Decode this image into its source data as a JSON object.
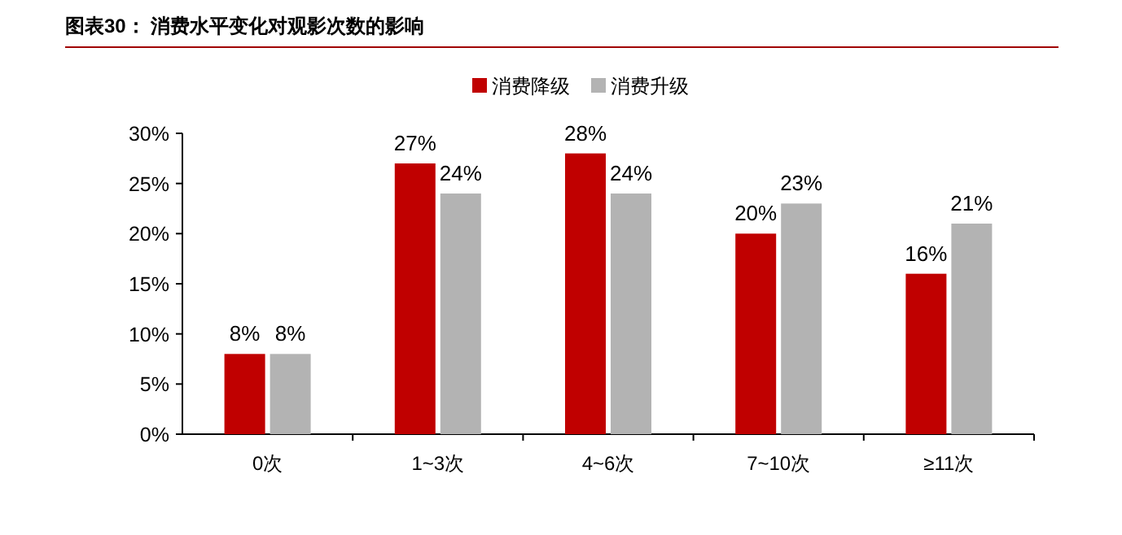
{
  "chart_data": {
    "type": "bar",
    "title": "图表30：  消费水平变化对观影次数的影响",
    "categories": [
      "0次",
      "1~3次",
      "4~6次",
      "7~10次",
      "≥11次"
    ],
    "series": [
      {
        "name": "消费降级",
        "color": "#c00000",
        "values": [
          8,
          27,
          28,
          20,
          16
        ],
        "value_labels": [
          "8%",
          "27%",
          "28%",
          "20%",
          "16%"
        ]
      },
      {
        "name": "消费升级",
        "color": "#b3b3b3",
        "values": [
          8,
          24,
          24,
          23,
          21
        ],
        "value_labels": [
          "8%",
          "24%",
          "24%",
          "23%",
          "21%"
        ]
      }
    ],
    "ylim": [
      0,
      30
    ],
    "yticks": [
      {
        "value": 0,
        "label": "0%"
      },
      {
        "value": 5,
        "label": "5%"
      },
      {
        "value": 10,
        "label": "10%"
      },
      {
        "value": 15,
        "label": "15%"
      },
      {
        "value": 20,
        "label": "20%"
      },
      {
        "value": 25,
        "label": "25%"
      },
      {
        "value": 30,
        "label": "30%"
      }
    ],
    "grid": false,
    "legend": "top"
  }
}
